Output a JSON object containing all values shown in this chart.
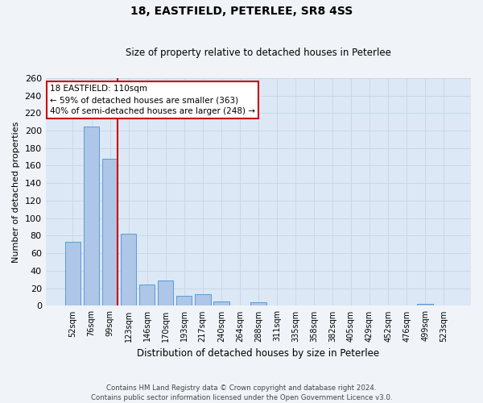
{
  "title": "18, EASTFIELD, PETERLEE, SR8 4SS",
  "subtitle": "Size of property relative to detached houses in Peterlee",
  "xlabel": "Distribution of detached houses by size in Peterlee",
  "ylabel": "Number of detached properties",
  "bar_labels": [
    "52sqm",
    "76sqm",
    "99sqm",
    "123sqm",
    "146sqm",
    "170sqm",
    "193sqm",
    "217sqm",
    "240sqm",
    "264sqm",
    "288sqm",
    "311sqm",
    "335sqm",
    "358sqm",
    "382sqm",
    "405sqm",
    "429sqm",
    "452sqm",
    "476sqm",
    "499sqm",
    "523sqm"
  ],
  "bar_values": [
    73,
    205,
    168,
    82,
    24,
    29,
    11,
    13,
    5,
    0,
    4,
    0,
    0,
    0,
    0,
    0,
    0,
    0,
    0,
    2,
    0
  ],
  "bar_color": "#aec6e8",
  "bar_edge_color": "#5b9bd5",
  "grid_color": "#c8d8e8",
  "background_color": "#dce8f5",
  "fig_background": "#f0f4f8",
  "red_line_color": "#cc0000",
  "annotation_title": "18 EASTFIELD: 110sqm",
  "annotation_line1": "← 59% of detached houses are smaller (363)",
  "annotation_line2": "40% of semi-detached houses are larger (248) →",
  "annotation_box_color": "#ffffff",
  "annotation_box_edge": "#cc0000",
  "ylim": [
    0,
    260
  ],
  "yticks": [
    0,
    20,
    40,
    60,
    80,
    100,
    120,
    140,
    160,
    180,
    200,
    220,
    240,
    260
  ],
  "footnote1": "Contains HM Land Registry data © Crown copyright and database right 2024.",
  "footnote2": "Contains public sector information licensed under the Open Government Licence v3.0."
}
